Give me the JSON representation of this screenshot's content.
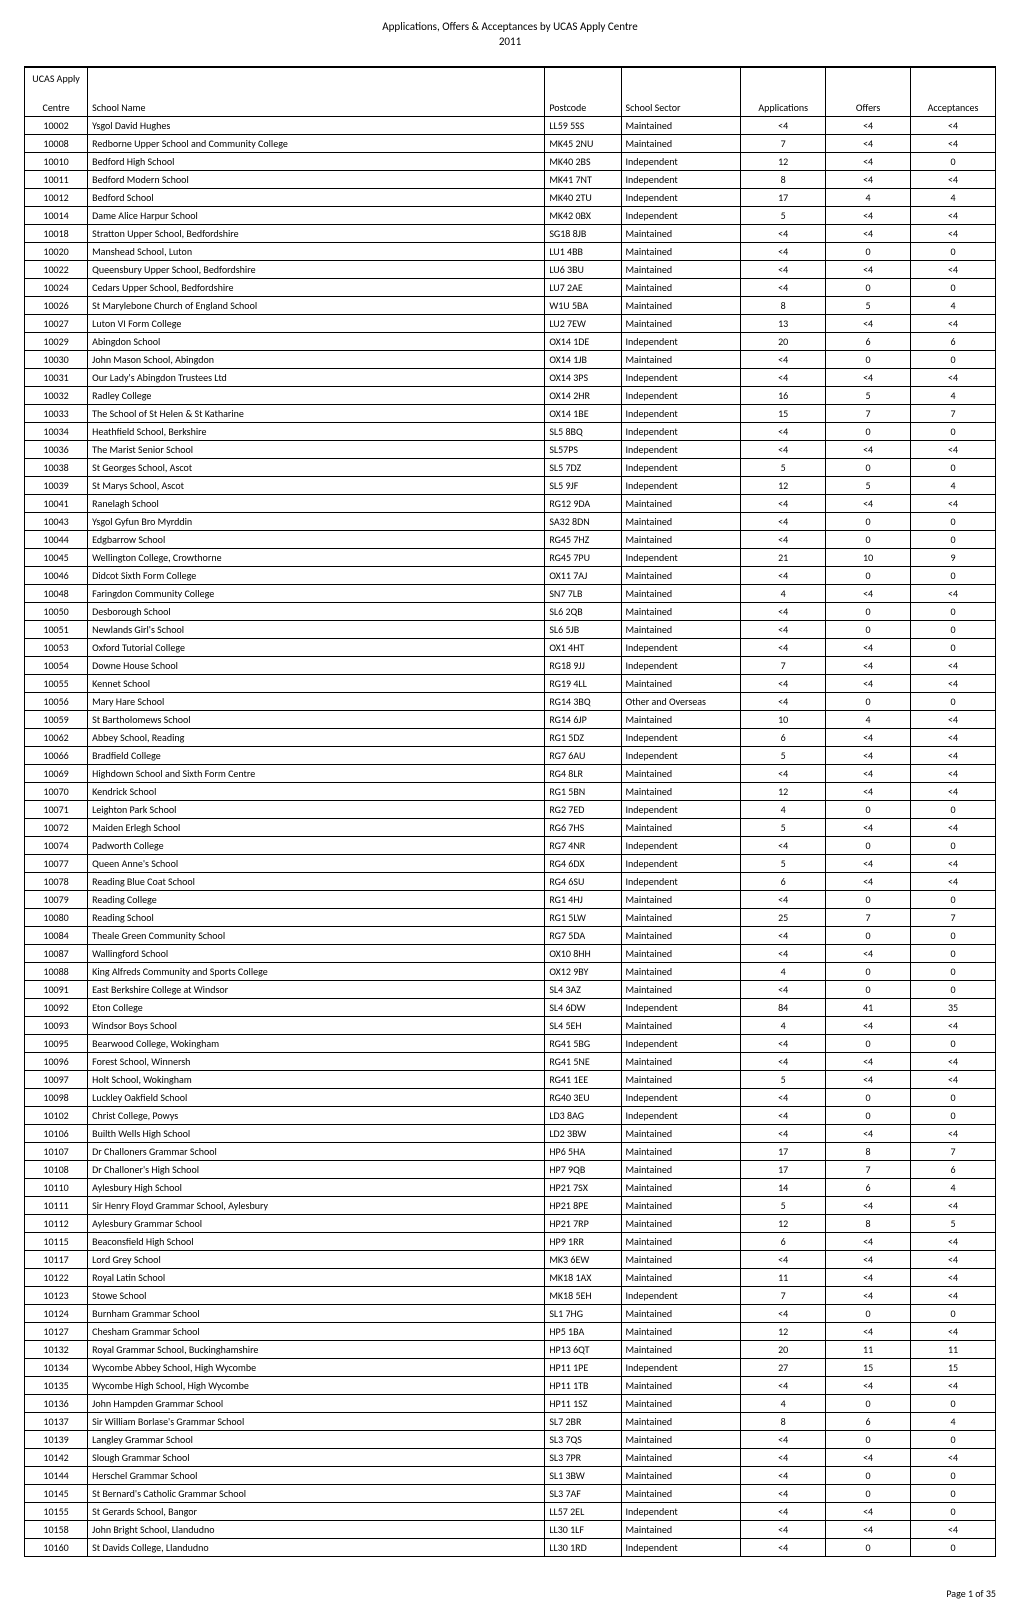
{
  "title": "Applications, Offers & Acceptances by UCAS Apply Centre",
  "year": "2011",
  "footer": "Page 1 of 35",
  "columns": {
    "centre_top": "UCAS Apply",
    "centre": "Centre",
    "name": "School Name",
    "postcode": "Postcode",
    "sector": "School Sector",
    "applications": "Applications",
    "offers": "Offers",
    "acceptances": "Acceptances"
  },
  "rows": [
    [
      "10002",
      "Ysgol David Hughes",
      "LL59 5SS",
      "Maintained",
      "<4",
      "<4",
      "<4"
    ],
    [
      "10008",
      "Redborne Upper School and Community College",
      "MK45 2NU",
      "Maintained",
      "7",
      "<4",
      "<4"
    ],
    [
      "10010",
      "Bedford High School",
      "MK40 2BS",
      "Independent",
      "12",
      "<4",
      "0"
    ],
    [
      "10011",
      "Bedford Modern School",
      "MK41 7NT",
      "Independent",
      "8",
      "<4",
      "<4"
    ],
    [
      "10012",
      "Bedford School",
      "MK40 2TU",
      "Independent",
      "17",
      "4",
      "4"
    ],
    [
      "10014",
      "Dame Alice Harpur School",
      "MK42 0BX",
      "Independent",
      "5",
      "<4",
      "<4"
    ],
    [
      "10018",
      "Stratton Upper School, Bedfordshire",
      "SG18 8JB",
      "Maintained",
      "<4",
      "<4",
      "<4"
    ],
    [
      "10020",
      "Manshead School, Luton",
      "LU1 4BB",
      "Maintained",
      "<4",
      "0",
      "0"
    ],
    [
      "10022",
      "Queensbury Upper School, Bedfordshire",
      "LU6 3BU",
      "Maintained",
      "<4",
      "<4",
      "<4"
    ],
    [
      "10024",
      "Cedars Upper School, Bedfordshire",
      "LU7 2AE",
      "Maintained",
      "<4",
      "0",
      "0"
    ],
    [
      "10026",
      "St Marylebone Church of England School",
      "W1U 5BA",
      "Maintained",
      "8",
      "5",
      "4"
    ],
    [
      "10027",
      "Luton VI Form College",
      "LU2 7EW",
      "Maintained",
      "13",
      "<4",
      "<4"
    ],
    [
      "10029",
      "Abingdon School",
      "OX14 1DE",
      "Independent",
      "20",
      "6",
      "6"
    ],
    [
      "10030",
      "John Mason School, Abingdon",
      "OX14 1JB",
      "Maintained",
      "<4",
      "0",
      "0"
    ],
    [
      "10031",
      "Our Lady's Abingdon Trustees Ltd",
      "OX14 3PS",
      "Independent",
      "<4",
      "<4",
      "<4"
    ],
    [
      "10032",
      "Radley College",
      "OX14 2HR",
      "Independent",
      "16",
      "5",
      "4"
    ],
    [
      "10033",
      "The School of St Helen & St Katharine",
      "OX14 1BE",
      "Independent",
      "15",
      "7",
      "7"
    ],
    [
      "10034",
      "Heathfield School, Berkshire",
      "SL5 8BQ",
      "Independent",
      "<4",
      "0",
      "0"
    ],
    [
      "10036",
      "The Marist Senior School",
      "SL57PS",
      "Independent",
      "<4",
      "<4",
      "<4"
    ],
    [
      "10038",
      "St Georges School, Ascot",
      "SL5 7DZ",
      "Independent",
      "5",
      "0",
      "0"
    ],
    [
      "10039",
      "St Marys School, Ascot",
      "SL5 9JF",
      "Independent",
      "12",
      "5",
      "4"
    ],
    [
      "10041",
      "Ranelagh School",
      "RG12 9DA",
      "Maintained",
      "<4",
      "<4",
      "<4"
    ],
    [
      "10043",
      "Ysgol Gyfun Bro Myrddin",
      "SA32 8DN",
      "Maintained",
      "<4",
      "0",
      "0"
    ],
    [
      "10044",
      "Edgbarrow School",
      "RG45 7HZ",
      "Maintained",
      "<4",
      "0",
      "0"
    ],
    [
      "10045",
      "Wellington College, Crowthorne",
      "RG45 7PU",
      "Independent",
      "21",
      "10",
      "9"
    ],
    [
      "10046",
      "Didcot Sixth Form College",
      "OX11 7AJ",
      "Maintained",
      "<4",
      "0",
      "0"
    ],
    [
      "10048",
      "Faringdon Community College",
      "SN7 7LB",
      "Maintained",
      "4",
      "<4",
      "<4"
    ],
    [
      "10050",
      "Desborough School",
      "SL6 2QB",
      "Maintained",
      "<4",
      "0",
      "0"
    ],
    [
      "10051",
      "Newlands Girl's School",
      "SL6 5JB",
      "Maintained",
      "<4",
      "0",
      "0"
    ],
    [
      "10053",
      "Oxford Tutorial College",
      "OX1 4HT",
      "Independent",
      "<4",
      "<4",
      "0"
    ],
    [
      "10054",
      "Downe House School",
      "RG18 9JJ",
      "Independent",
      "7",
      "<4",
      "<4"
    ],
    [
      "10055",
      "Kennet School",
      "RG19 4LL",
      "Maintained",
      "<4",
      "<4",
      "<4"
    ],
    [
      "10056",
      "Mary Hare School",
      "RG14 3BQ",
      "Other and Overseas",
      "<4",
      "0",
      "0"
    ],
    [
      "10059",
      "St Bartholomews School",
      "RG14 6JP",
      "Maintained",
      "10",
      "4",
      "<4"
    ],
    [
      "10062",
      "Abbey School, Reading",
      "RG1 5DZ",
      "Independent",
      "6",
      "<4",
      "<4"
    ],
    [
      "10066",
      "Bradfield College",
      "RG7 6AU",
      "Independent",
      "5",
      "<4",
      "<4"
    ],
    [
      "10069",
      "Highdown School and Sixth Form Centre",
      "RG4 8LR",
      "Maintained",
      "<4",
      "<4",
      "<4"
    ],
    [
      "10070",
      "Kendrick School",
      "RG1 5BN",
      "Maintained",
      "12",
      "<4",
      "<4"
    ],
    [
      "10071",
      "Leighton Park School",
      "RG2 7ED",
      "Independent",
      "4",
      "0",
      "0"
    ],
    [
      "10072",
      "Maiden Erlegh School",
      "RG6 7HS",
      "Maintained",
      "5",
      "<4",
      "<4"
    ],
    [
      "10074",
      "Padworth College",
      "RG7 4NR",
      "Independent",
      "<4",
      "0",
      "0"
    ],
    [
      "10077",
      "Queen Anne's School",
      "RG4 6DX",
      "Independent",
      "5",
      "<4",
      "<4"
    ],
    [
      "10078",
      "Reading Blue Coat School",
      "RG4 6SU",
      "Independent",
      "6",
      "<4",
      "<4"
    ],
    [
      "10079",
      "Reading College",
      "RG1 4HJ",
      "Maintained",
      "<4",
      "0",
      "0"
    ],
    [
      "10080",
      "Reading School",
      "RG1 5LW",
      "Maintained",
      "25",
      "7",
      "7"
    ],
    [
      "10084",
      "Theale Green Community School",
      "RG7 5DA",
      "Maintained",
      "<4",
      "0",
      "0"
    ],
    [
      "10087",
      "Wallingford School",
      "OX10 8HH",
      "Maintained",
      "<4",
      "<4",
      "0"
    ],
    [
      "10088",
      "King Alfreds Community and Sports College",
      "OX12 9BY",
      "Maintained",
      "4",
      "0",
      "0"
    ],
    [
      "10091",
      "East Berkshire College at Windsor",
      "SL4 3AZ",
      "Maintained",
      "<4",
      "0",
      "0"
    ],
    [
      "10092",
      "Eton College",
      "SL4 6DW",
      "Independent",
      "84",
      "41",
      "35"
    ],
    [
      "10093",
      "Windsor Boys School",
      "SL4 5EH",
      "Maintained",
      "4",
      "<4",
      "<4"
    ],
    [
      "10095",
      "Bearwood College, Wokingham",
      "RG41 5BG",
      "Independent",
      "<4",
      "0",
      "0"
    ],
    [
      "10096",
      "Forest School, Winnersh",
      "RG41 5NE",
      "Maintained",
      "<4",
      "<4",
      "<4"
    ],
    [
      "10097",
      "Holt School, Wokingham",
      "RG41 1EE",
      "Maintained",
      "5",
      "<4",
      "<4"
    ],
    [
      "10098",
      "Luckley Oakfield School",
      "RG40 3EU",
      "Independent",
      "<4",
      "0",
      "0"
    ],
    [
      "10102",
      "Christ College, Powys",
      "LD3 8AG",
      "Independent",
      "<4",
      "0",
      "0"
    ],
    [
      "10106",
      "Builth Wells High School",
      "LD2 3BW",
      "Maintained",
      "<4",
      "<4",
      "<4"
    ],
    [
      "10107",
      "Dr Challoners Grammar School",
      "HP6 5HA",
      "Maintained",
      "17",
      "8",
      "7"
    ],
    [
      "10108",
      "Dr Challoner's High School",
      "HP7 9QB",
      "Maintained",
      "17",
      "7",
      "6"
    ],
    [
      "10110",
      "Aylesbury High School",
      "HP21 7SX",
      "Maintained",
      "14",
      "6",
      "4"
    ],
    [
      "10111",
      "Sir Henry Floyd Grammar School, Aylesbury",
      "HP21 8PE",
      "Maintained",
      "5",
      "<4",
      "<4"
    ],
    [
      "10112",
      "Aylesbury Grammar School",
      "HP21 7RP",
      "Maintained",
      "12",
      "8",
      "5"
    ],
    [
      "10115",
      "Beaconsfield High School",
      "HP9 1RR",
      "Maintained",
      "6",
      "<4",
      "<4"
    ],
    [
      "10117",
      "Lord Grey School",
      "MK3 6EW",
      "Maintained",
      "<4",
      "<4",
      "<4"
    ],
    [
      "10122",
      "Royal Latin School",
      "MK18 1AX",
      "Maintained",
      "11",
      "<4",
      "<4"
    ],
    [
      "10123",
      "Stowe School",
      "MK18 5EH",
      "Independent",
      "7",
      "<4",
      "<4"
    ],
    [
      "10124",
      "Burnham Grammar School",
      "SL1 7HG",
      "Maintained",
      "<4",
      "0",
      "0"
    ],
    [
      "10127",
      "Chesham Grammar School",
      "HP5 1BA",
      "Maintained",
      "12",
      "<4",
      "<4"
    ],
    [
      "10132",
      "Royal Grammar School, Buckinghamshire",
      "HP13 6QT",
      "Maintained",
      "20",
      "11",
      "11"
    ],
    [
      "10134",
      "Wycombe Abbey School, High Wycombe",
      "HP11 1PE",
      "Independent",
      "27",
      "15",
      "15"
    ],
    [
      "10135",
      "Wycombe High School, High Wycombe",
      "HP11 1TB",
      "Maintained",
      "<4",
      "<4",
      "<4"
    ],
    [
      "10136",
      "John Hampden Grammar School",
      "HP11 1SZ",
      "Maintained",
      "4",
      "0",
      "0"
    ],
    [
      "10137",
      "Sir William Borlase's Grammar School",
      "SL7 2BR",
      "Maintained",
      "8",
      "6",
      "4"
    ],
    [
      "10139",
      "Langley Grammar School",
      "SL3 7QS",
      "Maintained",
      "<4",
      "0",
      "0"
    ],
    [
      "10142",
      "Slough Grammar School",
      "SL3 7PR",
      "Maintained",
      "<4",
      "<4",
      "<4"
    ],
    [
      "10144",
      "Herschel Grammar School",
      "SL1 3BW",
      "Maintained",
      "<4",
      "0",
      "0"
    ],
    [
      "10145",
      "St Bernard's Catholic Grammar School",
      "SL3 7AF",
      "Maintained",
      "<4",
      "0",
      "0"
    ],
    [
      "10155",
      "St Gerards School, Bangor",
      "LL57 2EL",
      "Independent",
      "<4",
      "<4",
      "0"
    ],
    [
      "10158",
      "John Bright School, Llandudno",
      "LL30 1LF",
      "Maintained",
      "<4",
      "<4",
      "<4"
    ],
    [
      "10160",
      "St Davids College, Llandudno",
      "LL30 1RD",
      "Independent",
      "<4",
      "0",
      "0"
    ]
  ]
}
